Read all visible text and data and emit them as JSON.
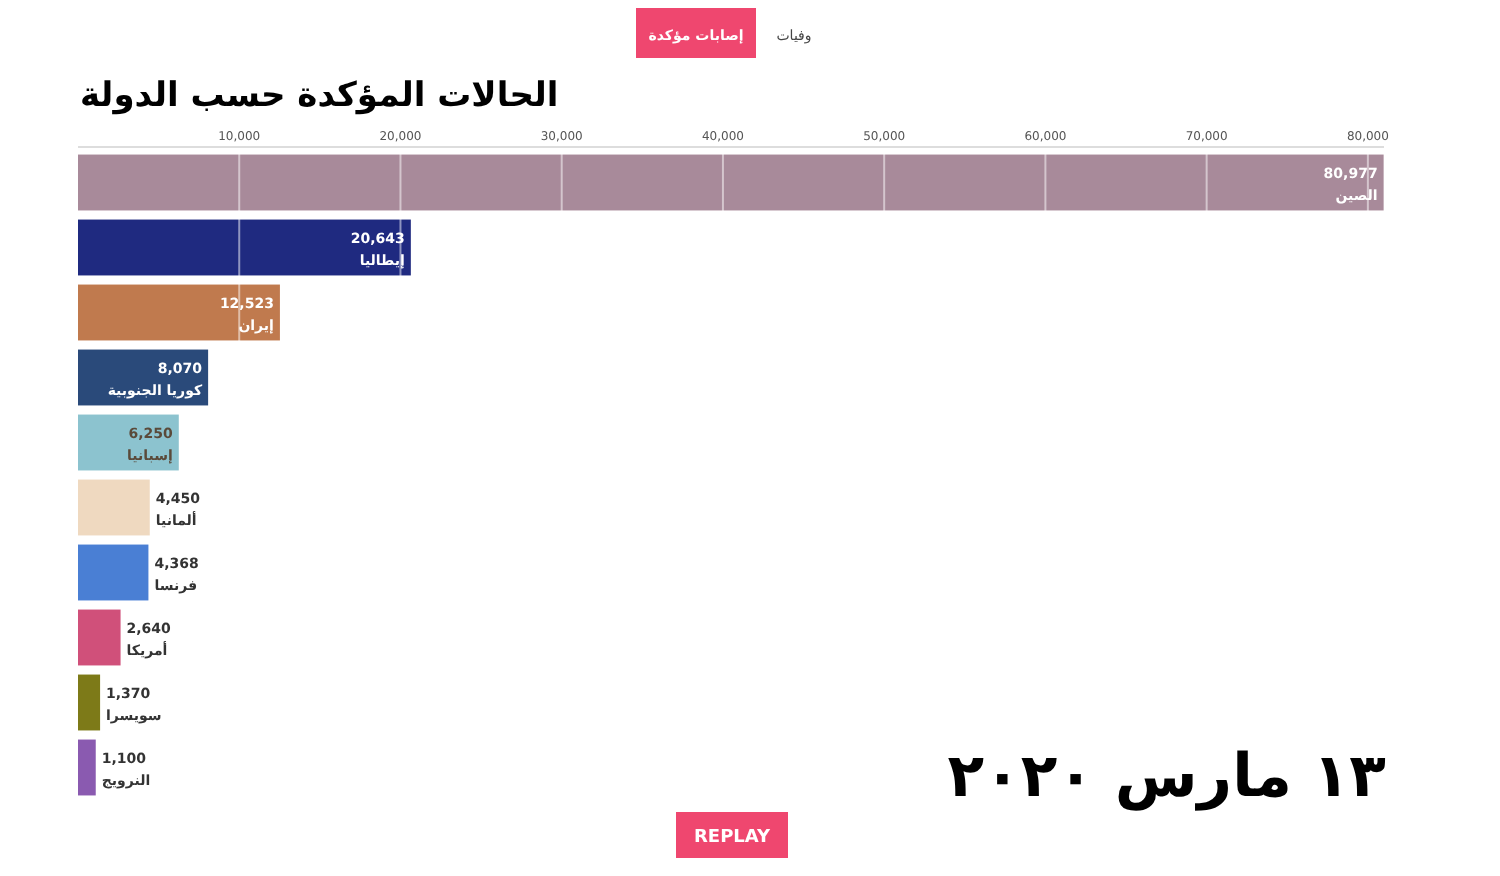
{
  "chart_data": {
    "type": "bar",
    "orientation": "horizontal",
    "title": "الحالات المؤكدة حسب الدولة",
    "categories": [
      "الصين",
      "إيطاليا",
      "إيران",
      "كوريا الجنوبية",
      "إسبانيا",
      "ألمانيا",
      "فرنسا",
      "أمريكا",
      "سويسرا",
      "النرويج"
    ],
    "values": [
      80977,
      20643,
      12523,
      8070,
      6250,
      4450,
      4368,
      2640,
      1370,
      1100
    ],
    "value_labels": [
      "80,977",
      "20,643",
      "12,523",
      "8,070",
      "6,250",
      "4,450",
      "4,368",
      "2,640",
      "1,370",
      "1,100"
    ],
    "colors": [
      "#a88a9a",
      "#1f2a80",
      "#c07a4e",
      "#2a4a7a",
      "#8cc3cf",
      "#efd9c0",
      "#4a7fd4",
      "#d0507a",
      "#7d7a18",
      "#8a5ab0"
    ],
    "xlim": [
      0,
      81000
    ],
    "xticks": [
      {
        "value": 10000,
        "label": "10,000"
      },
      {
        "value": 20000,
        "label": "20,000"
      },
      {
        "value": 30000,
        "label": "30,000"
      },
      {
        "value": 40000,
        "label": "40,000"
      },
      {
        "value": 50000,
        "label": "50,000"
      },
      {
        "value": 60000,
        "label": "60,000"
      },
      {
        "value": 70000,
        "label": "70,000"
      },
      {
        "value": 80000,
        "label": "80,000"
      }
    ],
    "grid": "x",
    "annotations": [
      "وفيات",
      "إصابات مؤكدة",
      "١٣ مارس ٢٠٢٠",
      "REPLAY"
    ]
  }
}
